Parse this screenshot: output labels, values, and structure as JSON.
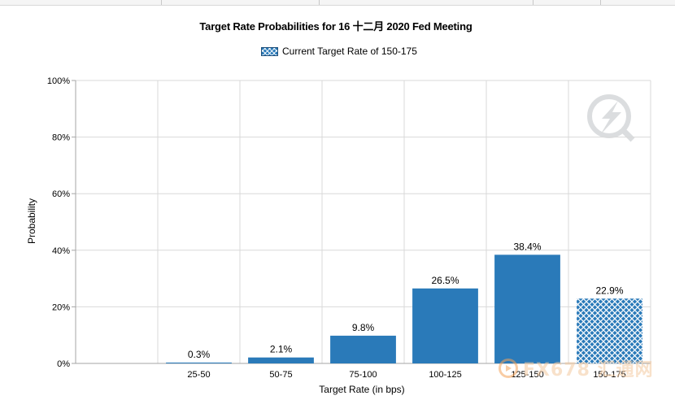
{
  "chart_data": {
    "type": "bar",
    "title": "Target Rate Probabilities for 16 十二月 2020 Fed Meeting",
    "xlabel": "Target Rate (in bps)",
    "ylabel": "Probability",
    "categories": [
      "25-50",
      "50-75",
      "75-100",
      "100-125",
      "125-150",
      "150-175"
    ],
    "values": [
      0.3,
      2.1,
      9.8,
      26.5,
      38.4,
      22.9
    ],
    "data_labels": [
      "0.3%",
      "2.1%",
      "9.8%",
      "26.5%",
      "38.4%",
      "22.9%"
    ],
    "highlight_category": "150-175",
    "ylim": [
      0,
      100
    ],
    "yticks": [
      0,
      20,
      40,
      60,
      80,
      100
    ],
    "ytick_labels": [
      "0%",
      "20%",
      "40%",
      "60%",
      "80%",
      "100%"
    ],
    "grid": true,
    "legend": {
      "position": "top-center",
      "entries": [
        "Current Target Rate of 150-175"
      ]
    },
    "colors": {
      "bar": "#2a7ab9",
      "highlight_pattern": "#2a7ab9",
      "grid": "#d9d9d9",
      "axis": "#a6a6a6"
    }
  },
  "watermark": {
    "text": "FX678 汇通网"
  }
}
